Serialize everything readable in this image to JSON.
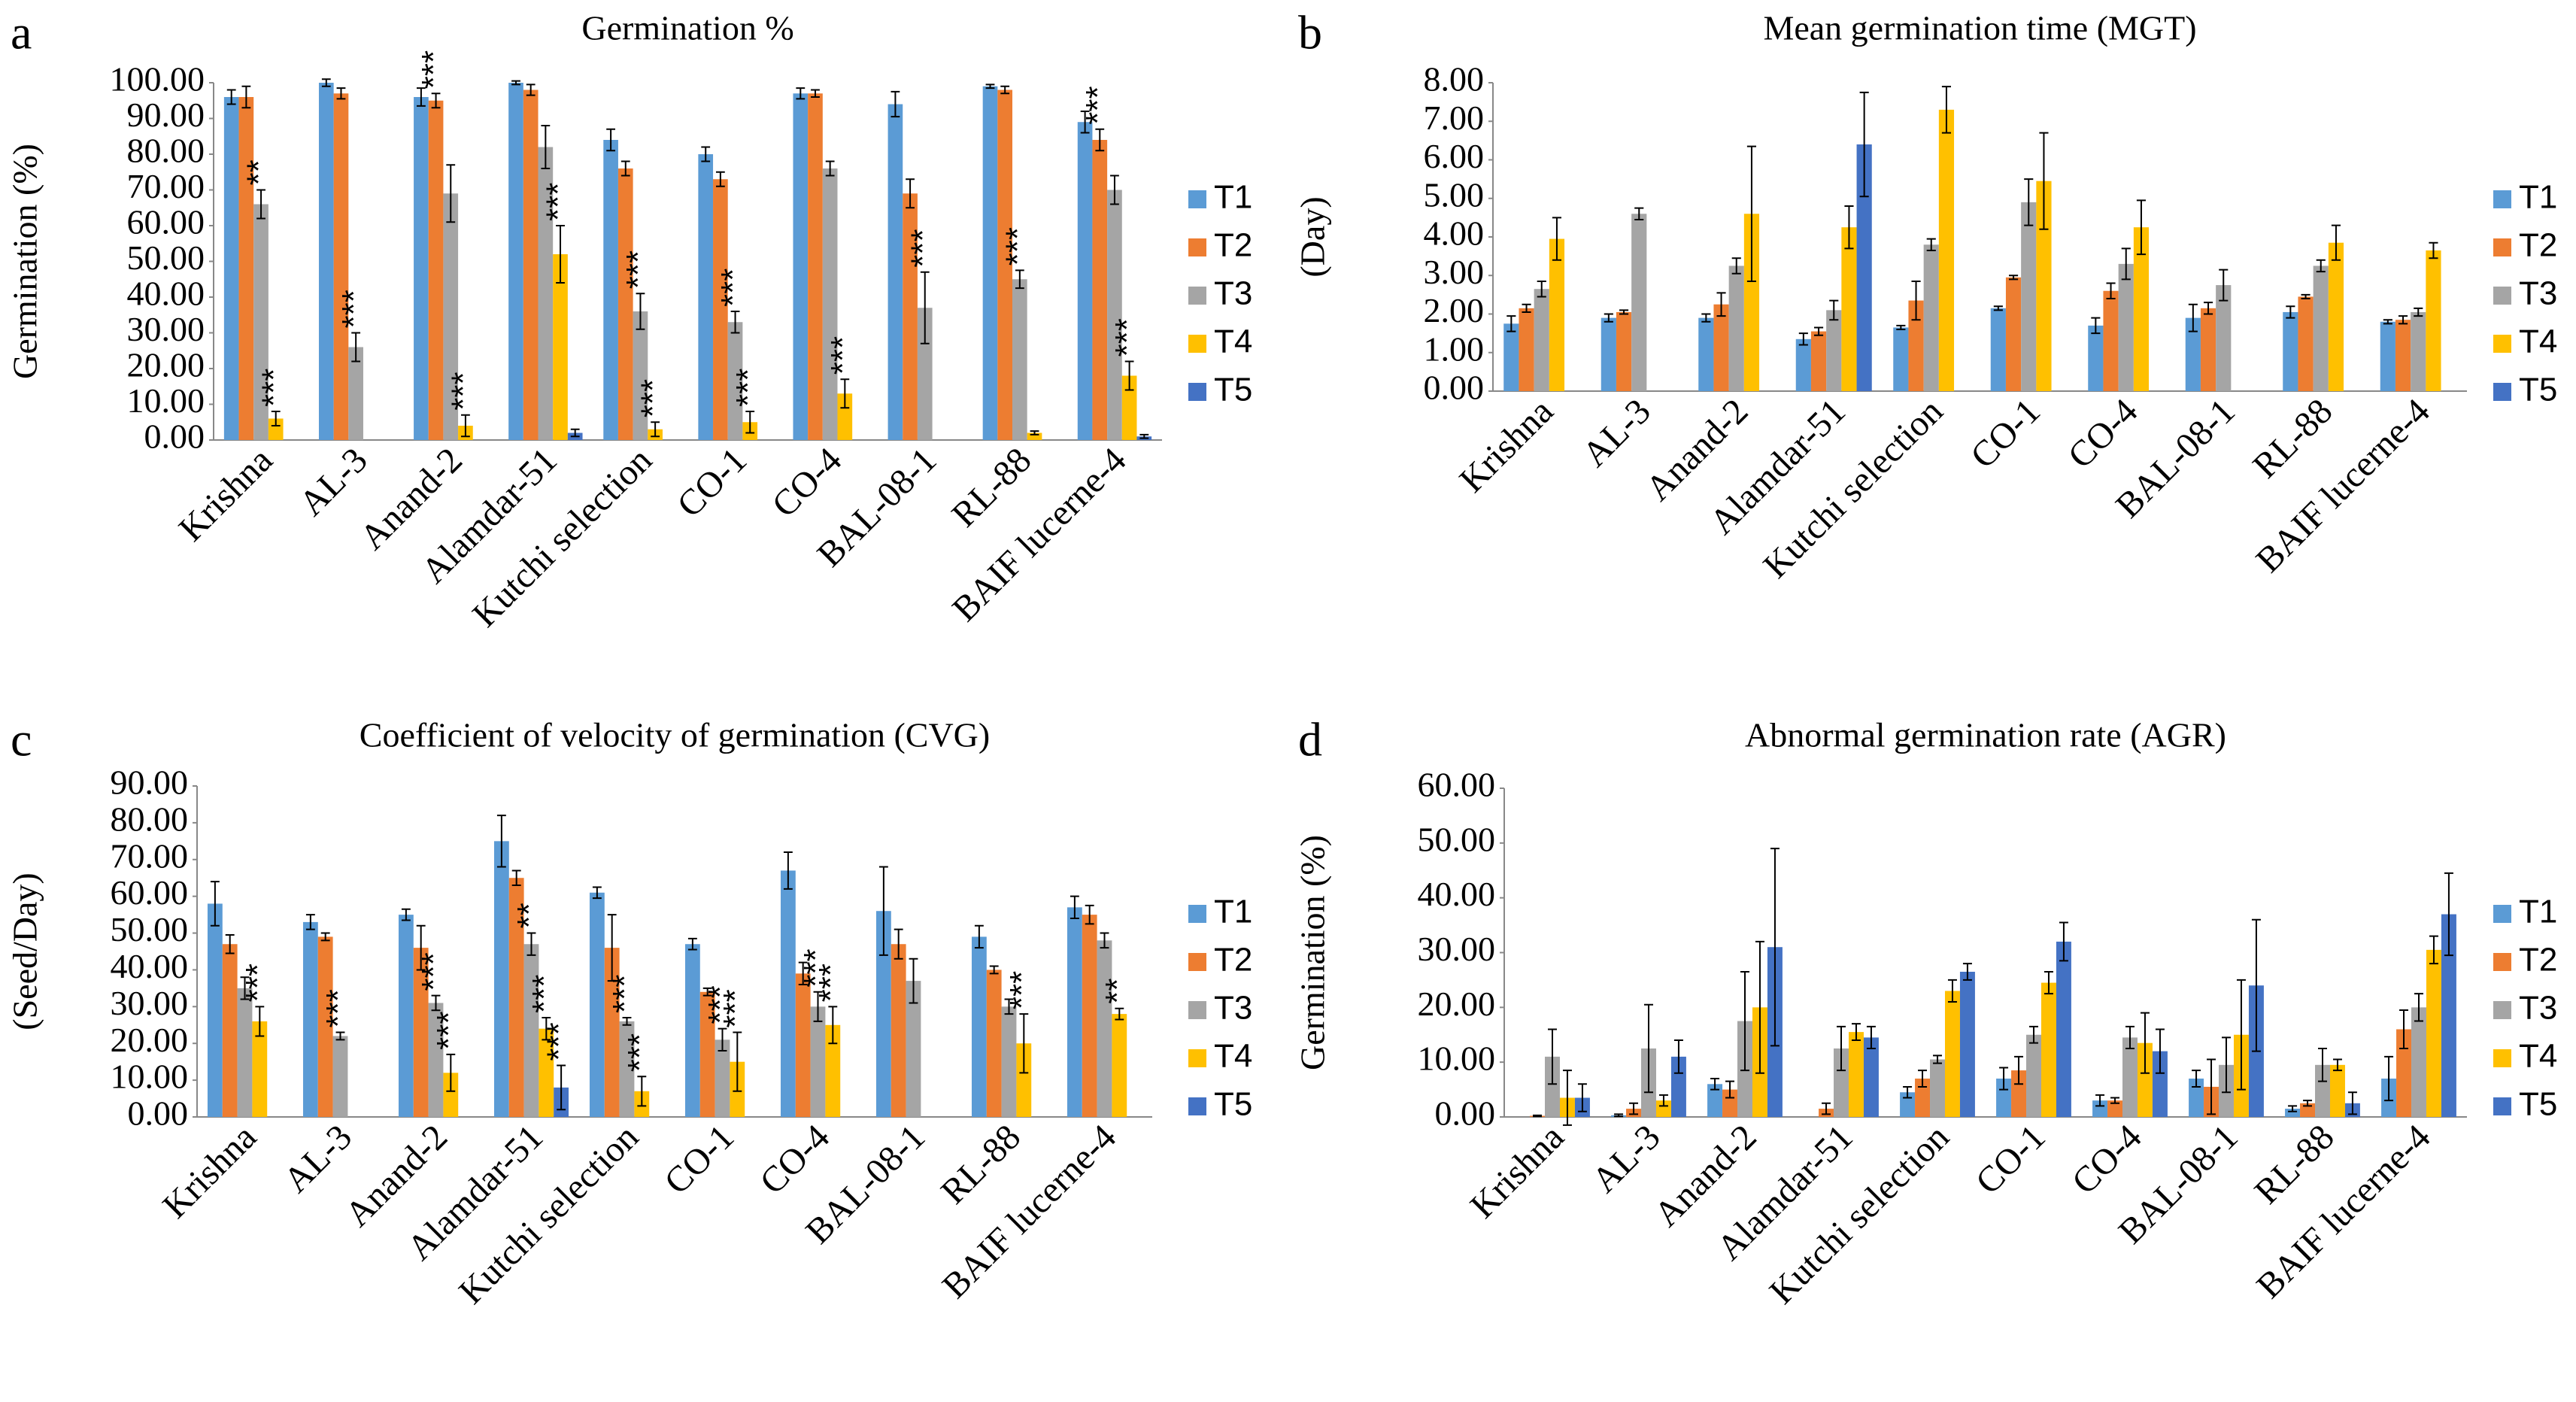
{
  "chart_data": [
    {
      "type": "bar",
      "panel_label": "a",
      "title": "Germination %",
      "y_label": "Germination (%)",
      "categories": [
        "Krishna",
        "AL-3",
        "Anand-2",
        "Alamdar-51",
        "Kutchi selection",
        "CO-1",
        "CO-4",
        "BAL-08-1",
        "RL-88",
        "BAIF lucerne-4"
      ],
      "ylim": [
        0,
        100
      ],
      "yticks": [
        {
          "value": 0,
          "label": "0.00"
        },
        {
          "value": 10,
          "label": "10.00"
        },
        {
          "value": 20,
          "label": "20.00"
        },
        {
          "value": 30,
          "label": "30.00"
        },
        {
          "value": 40,
          "label": "40.00"
        },
        {
          "value": 50,
          "label": "50.00"
        },
        {
          "value": 60,
          "label": "60.00"
        },
        {
          "value": 70,
          "label": "70.00"
        },
        {
          "value": 80,
          "label": "80.00"
        },
        {
          "value": 90,
          "label": "90.00"
        },
        {
          "value": 100,
          "label": "100.00"
        }
      ],
      "series": [
        {
          "name": "T1",
          "color": "#5b9bd5",
          "values": [
            96,
            100,
            96,
            100,
            84,
            80,
            97,
            94,
            99,
            89
          ],
          "errors": [
            2,
            1,
            2.5,
            0.5,
            3,
            2,
            1.5,
            3.5,
            0.5,
            3
          ],
          "annotations": [
            null,
            null,
            null,
            null,
            null,
            null,
            null,
            null,
            null,
            null
          ]
        },
        {
          "name": "T2",
          "color": "#ed7d31",
          "values": [
            96,
            97,
            95,
            98,
            76,
            73,
            97,
            69,
            98,
            84
          ],
          "errors": [
            3,
            1.5,
            2,
            1.5,
            2,
            2,
            1,
            4,
            1,
            3
          ],
          "annotations": [
            null,
            null,
            "***",
            null,
            null,
            null,
            null,
            null,
            null,
            "***"
          ]
        },
        {
          "name": "T3",
          "color": "#a5a5a5",
          "values": [
            66,
            26,
            69,
            82,
            36,
            33,
            76,
            37,
            45,
            70
          ],
          "errors": [
            4,
            4,
            8,
            6,
            5,
            3,
            2,
            10,
            2.5,
            4
          ],
          "annotations": [
            "**",
            "***",
            null,
            null,
            "***",
            "***",
            null,
            "***",
            "***",
            null
          ]
        },
        {
          "name": "T4",
          "color": "#ffc000",
          "values": [
            6,
            null,
            4,
            52,
            3,
            5,
            13,
            null,
            2,
            18
          ],
          "errors": [
            2,
            null,
            3,
            8,
            2,
            3,
            4,
            null,
            0.5,
            4
          ],
          "annotations": [
            "***",
            null,
            "***",
            "***",
            "***",
            "***",
            "***",
            null,
            null,
            "***"
          ]
        },
        {
          "name": "T5",
          "color": "#4472c4",
          "values": [
            null,
            null,
            null,
            2,
            null,
            null,
            null,
            null,
            null,
            1
          ],
          "errors": [
            null,
            null,
            null,
            1,
            null,
            null,
            null,
            null,
            null,
            0.5
          ],
          "annotations": [
            null,
            null,
            null,
            null,
            null,
            null,
            null,
            null,
            null,
            null
          ]
        }
      ]
    },
    {
      "type": "bar",
      "panel_label": "b",
      "title": "Mean germination time (MGT)",
      "y_label": "(Day)",
      "categories": [
        "Krishna",
        "AL-3",
        "Anand-2",
        "Alamdar-51",
        "Kutchi selection",
        "CO-1",
        "CO-4",
        "BAL-08-1",
        "RL-88",
        "BAIF lucerne-4"
      ],
      "ylim": [
        0,
        8
      ],
      "yticks": [
        {
          "value": 0,
          "label": "0.00"
        },
        {
          "value": 1,
          "label": "1.00"
        },
        {
          "value": 2,
          "label": "2.00"
        },
        {
          "value": 3,
          "label": "3.00"
        },
        {
          "value": 4,
          "label": "4.00"
        },
        {
          "value": 5,
          "label": "5.00"
        },
        {
          "value": 6,
          "label": "6.00"
        },
        {
          "value": 7,
          "label": "7.00"
        },
        {
          "value": 8,
          "label": "8.00"
        }
      ],
      "series": [
        {
          "name": "T1",
          "color": "#5b9bd5",
          "values": [
            1.75,
            1.9,
            1.9,
            1.35,
            1.65,
            2.15,
            1.7,
            1.9,
            2.05,
            1.8
          ],
          "errors": [
            0.2,
            0.1,
            0.1,
            0.15,
            0.05,
            0.05,
            0.2,
            0.35,
            0.15,
            0.05
          ]
        },
        {
          "name": "T2",
          "color": "#ed7d31",
          "values": [
            2.15,
            2.05,
            2.25,
            1.55,
            2.35,
            2.95,
            2.6,
            2.15,
            2.45,
            1.85
          ],
          "errors": [
            0.1,
            0.05,
            0.3,
            0.1,
            0.5,
            0.05,
            0.2,
            0.15,
            0.05,
            0.1
          ]
        },
        {
          "name": "T3",
          "color": "#a5a5a5",
          "values": [
            2.65,
            4.6,
            3.25,
            2.1,
            3.8,
            4.9,
            3.3,
            2.75,
            3.25,
            2.05
          ],
          "errors": [
            0.2,
            0.15,
            0.2,
            0.25,
            0.15,
            0.6,
            0.4,
            0.4,
            0.15,
            0.1
          ]
        },
        {
          "name": "T4",
          "color": "#ffc000",
          "values": [
            3.95,
            null,
            4.6,
            4.25,
            7.3,
            5.45,
            4.25,
            null,
            3.85,
            3.65
          ],
          "errors": [
            0.55,
            null,
            1.75,
            0.55,
            0.6,
            1.25,
            0.7,
            null,
            0.45,
            0.2
          ]
        },
        {
          "name": "T5",
          "color": "#4472c4",
          "values": [
            null,
            null,
            null,
            6.4,
            null,
            null,
            null,
            null,
            null,
            null
          ],
          "errors": [
            null,
            null,
            null,
            1.35,
            null,
            null,
            null,
            null,
            null,
            null
          ]
        }
      ]
    },
    {
      "type": "bar",
      "panel_label": "c",
      "title": "Coefficient of velocity of germination (CVG)",
      "y_label": "(Seed/Day)",
      "categories": [
        "Krishna",
        "AL-3",
        "Anand-2",
        "Alamdar-51",
        "Kutchi selection",
        "CO-1",
        "CO-4",
        "BAL-08-1",
        "RL-88",
        "BAIF lucerne-4"
      ],
      "ylim": [
        0,
        90
      ],
      "yticks": [
        {
          "value": 0,
          "label": "0.00"
        },
        {
          "value": 10,
          "label": "10.00"
        },
        {
          "value": 20,
          "label": "20.00"
        },
        {
          "value": 30,
          "label": "30.00"
        },
        {
          "value": 40,
          "label": "40.00"
        },
        {
          "value": 50,
          "label": "50.00"
        },
        {
          "value": 60,
          "label": "60.00"
        },
        {
          "value": 70,
          "label": "70.00"
        },
        {
          "value": 80,
          "label": "80.00"
        },
        {
          "value": 90,
          "label": "90.00"
        }
      ],
      "series": [
        {
          "name": "T1",
          "color": "#5b9bd5",
          "values": [
            58,
            53,
            55,
            75,
            61,
            47,
            67,
            56,
            49,
            57
          ],
          "errors": [
            6,
            2,
            1.5,
            7,
            1.5,
            1.5,
            5,
            12,
            3,
            3
          ],
          "annotations": [
            null,
            null,
            null,
            null,
            null,
            null,
            null,
            null,
            null,
            null
          ]
        },
        {
          "name": "T2",
          "color": "#ed7d31",
          "values": [
            47,
            49,
            46,
            65,
            46,
            34,
            39,
            47,
            40,
            55
          ],
          "errors": [
            2.5,
            1,
            6,
            2,
            9,
            1,
            3,
            4,
            1,
            2.5
          ],
          "annotations": [
            null,
            null,
            null,
            null,
            null,
            null,
            null,
            null,
            null,
            null
          ]
        },
        {
          "name": "T3",
          "color": "#a5a5a5",
          "values": [
            35,
            22,
            31,
            47,
            26,
            21,
            30,
            37,
            30,
            48
          ],
          "errors": [
            3,
            1,
            2,
            3,
            1,
            3,
            4,
            6,
            2,
            2
          ],
          "annotations": [
            null,
            "***",
            "***",
            "**",
            "***",
            "***",
            "***",
            null,
            null,
            null
          ]
        },
        {
          "name": "T4",
          "color": "#ffc000",
          "values": [
            26,
            null,
            12,
            24,
            7,
            15,
            25,
            null,
            20,
            28
          ],
          "errors": [
            4,
            null,
            5,
            3,
            4,
            8,
            5,
            null,
            8,
            1.5
          ],
          "annotations": [
            "***",
            null,
            "***",
            "***",
            "***",
            "***",
            "***",
            null,
            "***",
            "**"
          ]
        },
        {
          "name": "T5",
          "color": "#4472c4",
          "values": [
            null,
            null,
            null,
            8,
            null,
            null,
            null,
            null,
            null,
            null
          ],
          "errors": [
            null,
            null,
            null,
            6,
            null,
            null,
            null,
            null,
            null,
            null
          ],
          "annotations": [
            null,
            null,
            null,
            "***",
            null,
            null,
            null,
            null,
            null,
            null
          ]
        }
      ]
    },
    {
      "type": "bar",
      "panel_label": "d",
      "title": "Abnormal germination rate (AGR)",
      "y_label": "Germination (%)",
      "categories": [
        "Krishna",
        "AL-3",
        "Anand-2",
        "Alamdar-51",
        "Kutchi selection",
        "CO-1",
        "CO-4",
        "BAL-08-1",
        "RL-88",
        "BAIF lucerne-4"
      ],
      "ylim": [
        0,
        60
      ],
      "yticks": [
        {
          "value": 0,
          "label": "0.00"
        },
        {
          "value": 10,
          "label": "10.00"
        },
        {
          "value": 20,
          "label": "20.00"
        },
        {
          "value": 30,
          "label": "30.00"
        },
        {
          "value": 40,
          "label": "40.00"
        },
        {
          "value": 50,
          "label": "50.00"
        },
        {
          "value": 60,
          "label": "60.00"
        }
      ],
      "series": [
        {
          "name": "T1",
          "color": "#5b9bd5",
          "values": [
            null,
            0.3,
            6,
            null,
            4.5,
            7,
            3,
            7,
            1.5,
            7
          ],
          "errors": [
            null,
            0.2,
            1,
            null,
            1,
            2,
            1,
            1.5,
            0.5,
            4
          ]
        },
        {
          "name": "T2",
          "color": "#ed7d31",
          "values": [
            0.2,
            1.5,
            5,
            1.5,
            7,
            8.5,
            3,
            5.5,
            2.5,
            16
          ],
          "errors": [
            0.1,
            1,
            1.5,
            1,
            1.5,
            2.5,
            0.5,
            5,
            0.5,
            3.5
          ]
        },
        {
          "name": "T3",
          "color": "#a5a5a5",
          "values": [
            11,
            12.5,
            17.5,
            12.5,
            10.5,
            15,
            14.5,
            9.5,
            9.5,
            20
          ],
          "errors": [
            5,
            8,
            9,
            4,
            0.7,
            1.5,
            2,
            5,
            3,
            2.5
          ]
        },
        {
          "name": "T4",
          "color": "#ffc000",
          "values": [
            3.5,
            3,
            20,
            15.5,
            23,
            24.5,
            13.5,
            15,
            9.5,
            30.5
          ],
          "errors": [
            5,
            1,
            12,
            1.5,
            2,
            2,
            5.5,
            10,
            1,
            2.5
          ]
        },
        {
          "name": "T5",
          "color": "#4472c4",
          "values": [
            3.5,
            11,
            31,
            14.5,
            26.5,
            32,
            12,
            24,
            2.5,
            37
          ],
          "errors": [
            2.5,
            3,
            18,
            2,
            1.5,
            3.5,
            4,
            12,
            2,
            7.5
          ]
        }
      ]
    }
  ]
}
